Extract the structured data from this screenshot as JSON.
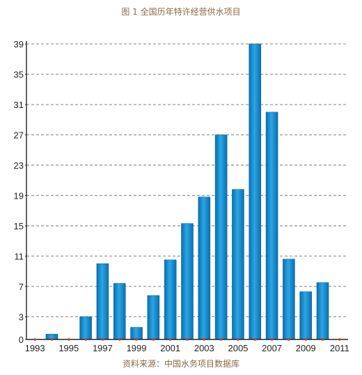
{
  "title": "图 1  全国历年特许经营供水项目",
  "source": "资料来源：中国水务项目数据库",
  "colors": {
    "bar": "#1a8fd0",
    "bar_dark": "#0a6aa8",
    "grid": "#9a9a9a",
    "axis": "#222222",
    "marker": "#e0301e"
  },
  "chart_data": {
    "type": "bar",
    "title": "",
    "xlabel": "",
    "ylabel": "",
    "categories": [
      "1993",
      "1994",
      "1995",
      "1996",
      "1997",
      "1998",
      "1999",
      "2000",
      "2001",
      "2002",
      "2003",
      "2004",
      "2005",
      "2006",
      "2007",
      "2008",
      "2009",
      "2010",
      "2011"
    ],
    "values": [
      0,
      0.7,
      0,
      3,
      10,
      7.4,
      1.6,
      5.8,
      10.5,
      15.3,
      18.8,
      27,
      19.8,
      39,
      30,
      10.6,
      6.3,
      7.5,
      0
    ],
    "x_tick_labels": [
      "1993",
      "1995",
      "1997",
      "1999",
      "2001",
      "2003",
      "2005",
      "2007",
      "2009",
      "2011"
    ],
    "y_ticks": [
      0,
      3,
      7,
      11,
      15,
      19,
      23,
      27,
      31,
      35,
      39
    ],
    "ylim": [
      0,
      39
    ],
    "grid": true,
    "legend": "none"
  }
}
